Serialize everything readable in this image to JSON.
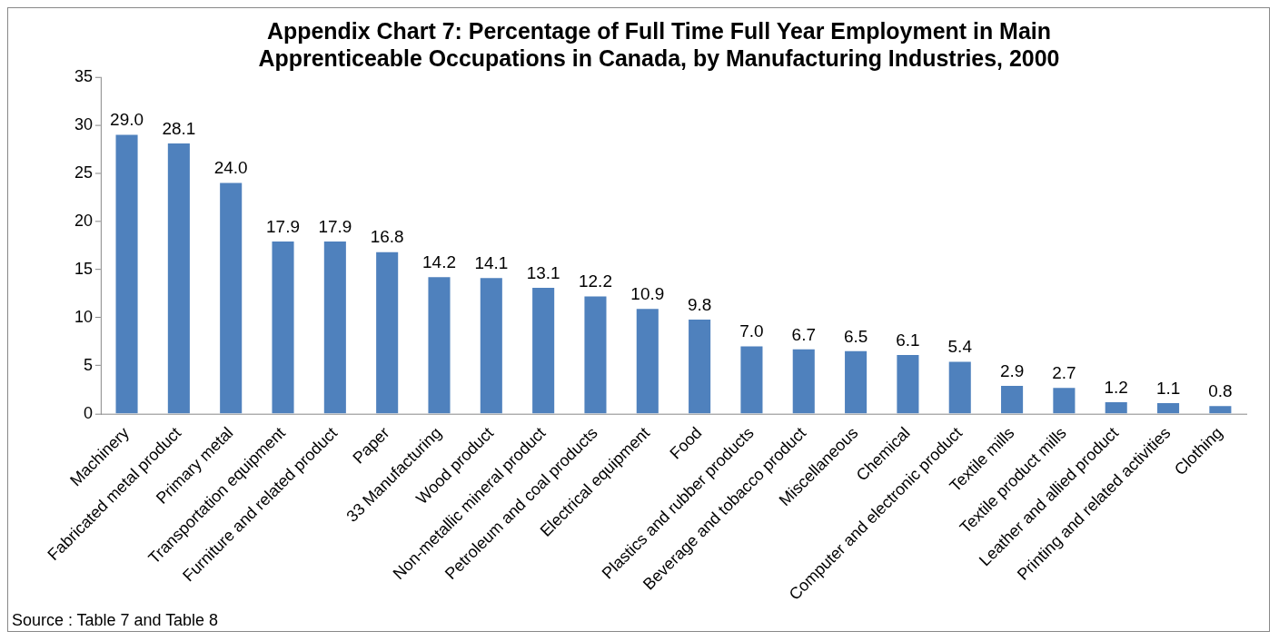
{
  "chart_data": {
    "type": "bar",
    "title": "Appendix Chart 7: Percentage of Full Time Full Year Employment in Main Apprenticeable Occupations in Canada, by Manufacturing Industries, 2000",
    "categories": [
      "Machinery",
      "Fabricated metal product",
      "Primary metal",
      "Transportation equipment",
      "Furniture and related product",
      "Paper",
      "33 Manufacturing",
      "Wood product",
      "Non-metallic mineral product",
      "Petroleum and coal products",
      "Electrical equipment",
      "Food",
      "Plastics and rubber products",
      "Beverage and tobacco product",
      "Miscellaneous",
      "Chemical",
      "Computer and electronic product",
      "Textile mills",
      "Textile product mills",
      "Leather and allied product",
      "Printing and related activities",
      "Clothing"
    ],
    "values": [
      29.0,
      28.1,
      24.0,
      17.9,
      17.9,
      16.8,
      14.2,
      14.1,
      13.1,
      12.2,
      10.9,
      9.8,
      7.0,
      6.7,
      6.5,
      6.1,
      5.4,
      2.9,
      2.7,
      1.2,
      1.1,
      0.8
    ],
    "value_labels": [
      "29.0",
      "28.1",
      "24.0",
      "17.9",
      "17.9",
      "16.8",
      "14.2",
      "14.1",
      "13.1",
      "12.2",
      "10.9",
      "9.8",
      "7.0",
      "6.7",
      "6.5",
      "6.1",
      "5.4",
      "2.9",
      "2.7",
      "1.2",
      "1.1",
      "0.8"
    ],
    "color": "#4f81bd",
    "ylim": [
      0,
      35
    ],
    "yticks": [
      0,
      5,
      10,
      15,
      20,
      25,
      30,
      35
    ],
    "annotations": [
      "Source : Table 7 and Table 8"
    ]
  }
}
